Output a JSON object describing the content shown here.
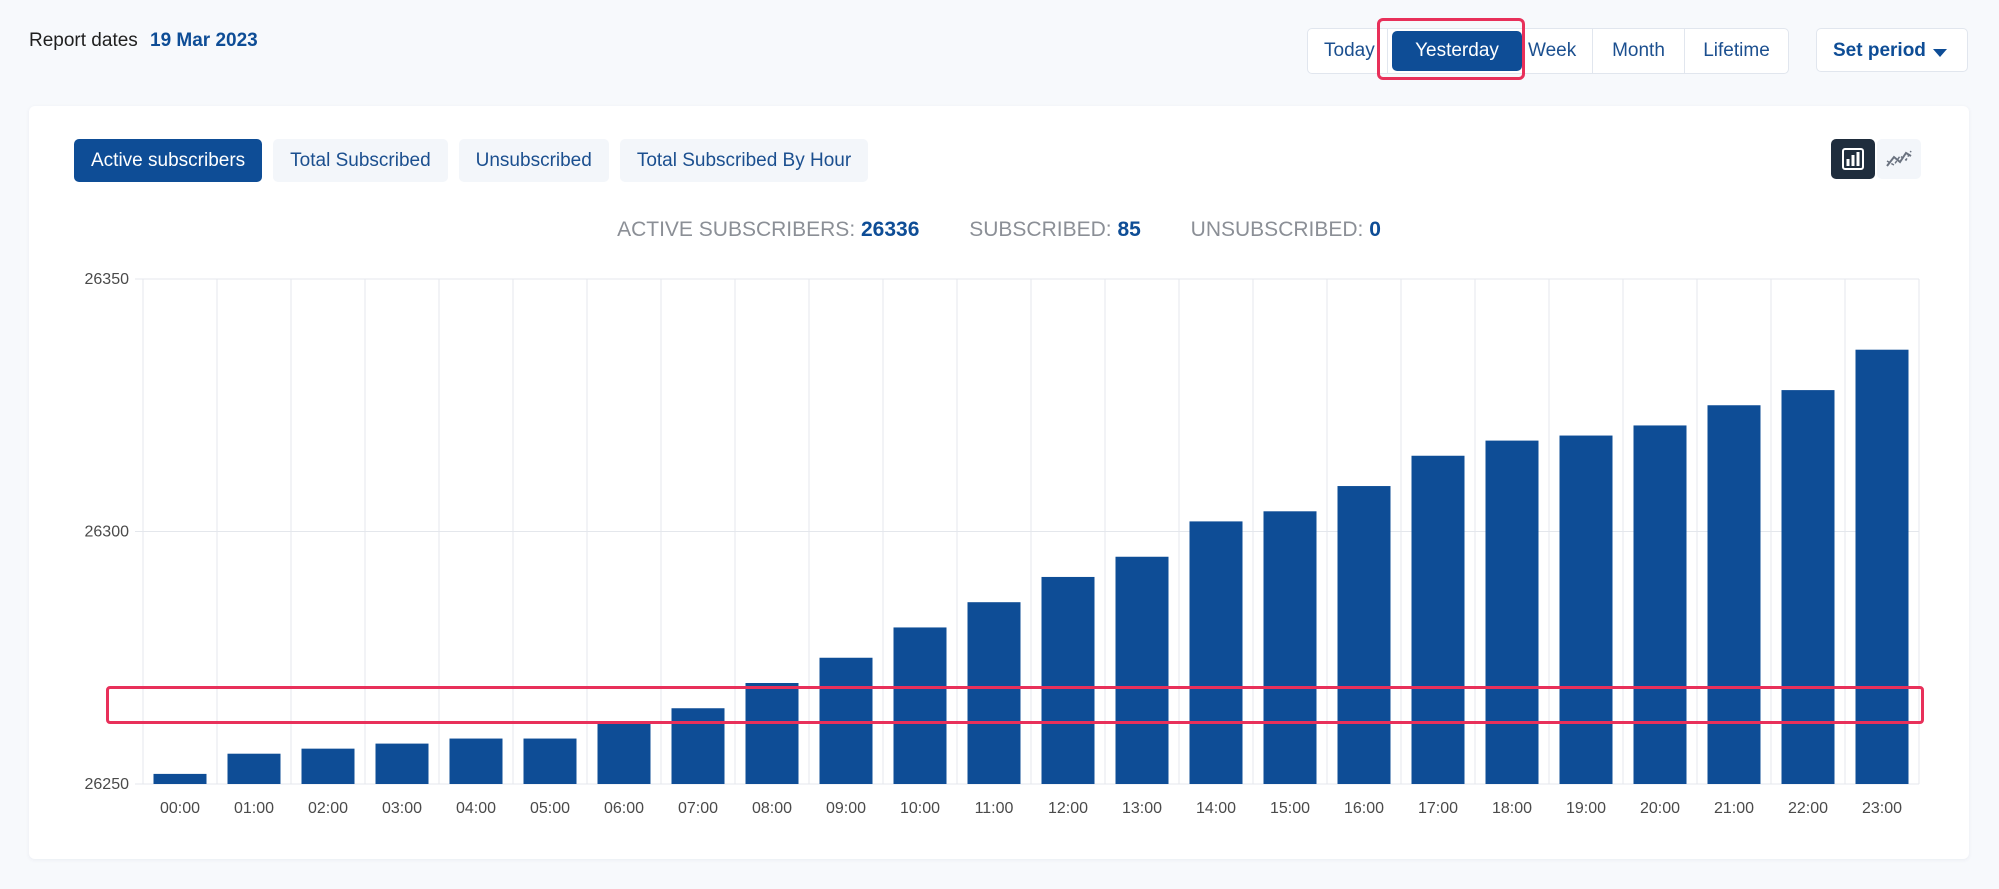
{
  "header": {
    "report_label": "Report dates",
    "report_date": "19 Mar 2023",
    "periods": [
      "Today",
      "Yesterday",
      "Week",
      "Month",
      "Lifetime"
    ],
    "selected_period": "Yesterday",
    "set_period_label": "Set period"
  },
  "tabs": [
    {
      "label": "Active subscribers",
      "active": true
    },
    {
      "label": "Total Subscribed",
      "active": false
    },
    {
      "label": "Unsubscribed",
      "active": false
    },
    {
      "label": "Total Subscribed By Hour",
      "active": false
    }
  ],
  "view_toggle": {
    "selected": "bar-chart-icon",
    "options": [
      "bar-chart-icon",
      "line-chart-icon"
    ]
  },
  "summary": {
    "active_label": "ACTIVE SUBSCRIBERS:",
    "active_value": "26336",
    "subscribed_label": "SUBSCRIBED:",
    "subscribed_value": "85",
    "unsubscribed_label": "UNSUBSCRIBED:",
    "unsubscribed_value": "0"
  },
  "colors": {
    "accent": "#0e4d96",
    "highlight": "#e8305a",
    "bar": "#0e4d96"
  },
  "chart_data": {
    "type": "bar",
    "categories": [
      "00:00",
      "01:00",
      "02:00",
      "03:00",
      "04:00",
      "05:00",
      "06:00",
      "07:00",
      "08:00",
      "09:00",
      "10:00",
      "11:00",
      "12:00",
      "13:00",
      "14:00",
      "15:00",
      "16:00",
      "17:00",
      "18:00",
      "19:00",
      "20:00",
      "21:00",
      "22:00",
      "23:00"
    ],
    "values": [
      26252,
      26256,
      26257,
      26258,
      26259,
      26259,
      26262,
      26265,
      26270,
      26275,
      26281,
      26286,
      26291,
      26295,
      26302,
      26304,
      26309,
      26315,
      26318,
      26319,
      26321,
      26325,
      26328,
      26336
    ],
    "y_ticks": [
      26250,
      26300,
      26350
    ],
    "ylim": [
      26250,
      26350
    ],
    "grid": true,
    "legend": "none"
  }
}
